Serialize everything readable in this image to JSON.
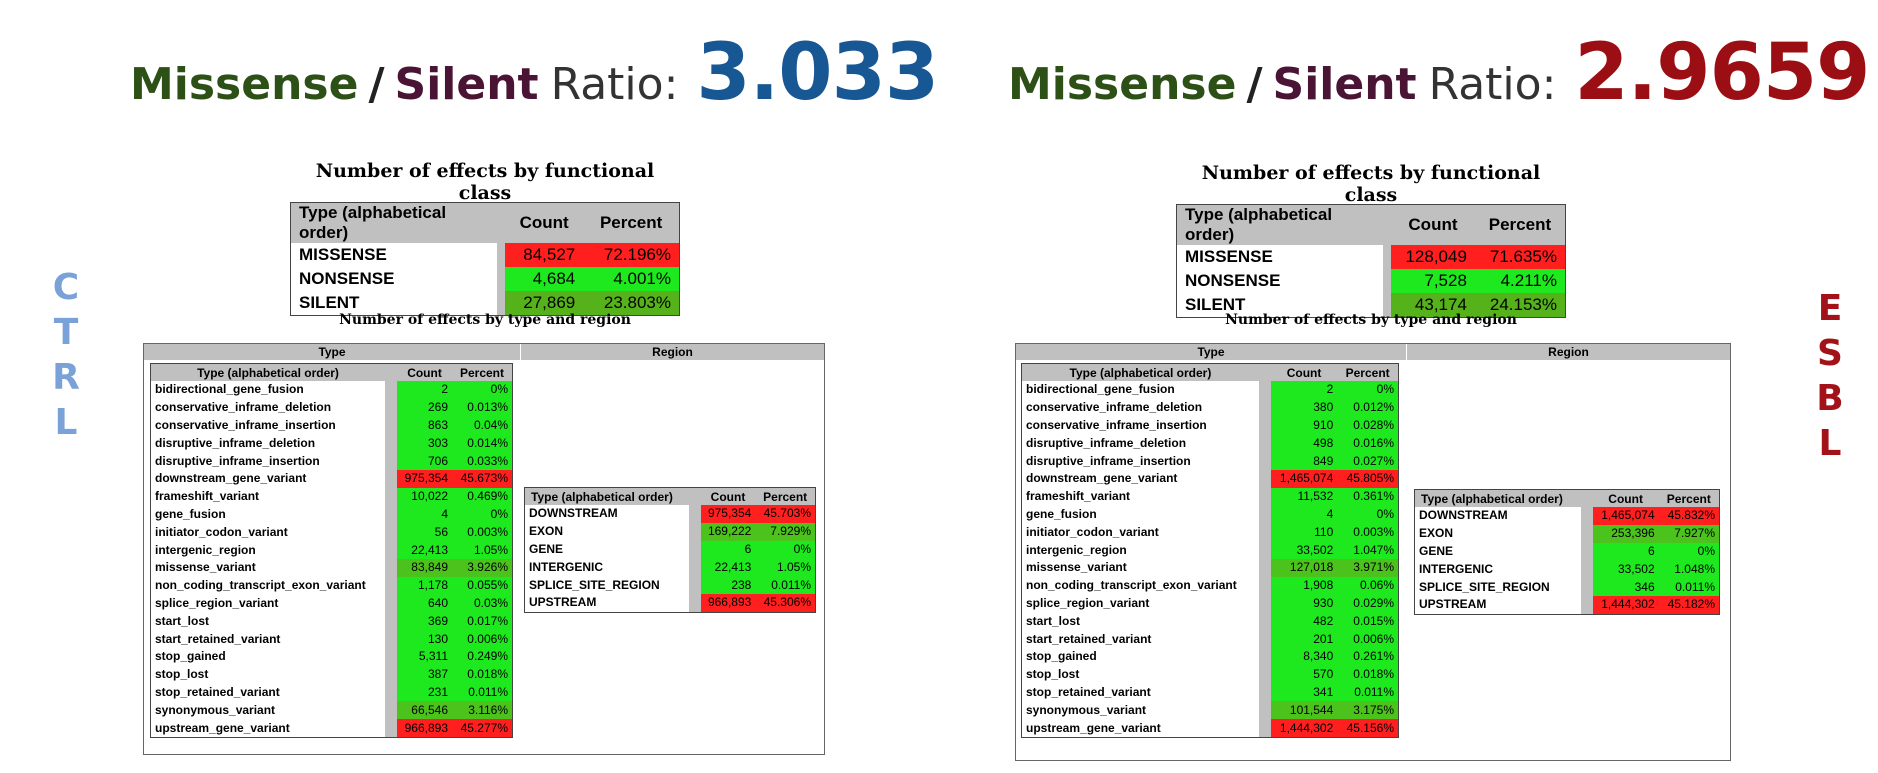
{
  "colors": {
    "red": "#ff1f1f",
    "green": "#1ee81e",
    "mid_green": "#4cc21c",
    "dark_green": "#56b21a",
    "left_ratio": "#175794",
    "right_ratio": "#9b0f14",
    "missense_word": "#2d5016",
    "silent_word": "#4a1535"
  },
  "left": {
    "ratio": {
      "missense": "Missense",
      "slash": "/",
      "silent": "Silent",
      "ratio_word": "Ratio",
      "colon": ":",
      "value": "3.033"
    },
    "side_label": [
      "C",
      "T",
      "R",
      "L"
    ],
    "functional_class": {
      "title": "Number of effects by functional class",
      "headers": {
        "type": "Type (alphabetical order)",
        "count": "Count",
        "percent": "Percent"
      },
      "rows": [
        {
          "type": "MISSENSE",
          "count": "84,527",
          "percent": "72.196%",
          "color": "#ff1f1f"
        },
        {
          "type": "NONSENSE",
          "count": "4,684",
          "percent": "4.001%",
          "color": "#1ee81e"
        },
        {
          "type": "SILENT",
          "count": "27,869",
          "percent": "23.803%",
          "color": "#56b21a"
        }
      ]
    },
    "type_region": {
      "title": "Number of effects by type and region",
      "type_header": "Type",
      "region_header": "Region",
      "type_table": {
        "headers": {
          "type": "Type (alphabetical order)",
          "count": "Count",
          "percent": "Percent"
        },
        "rows": [
          {
            "type": "bidirectional_gene_fusion",
            "count": "2",
            "percent": "0%",
            "color": "#1ee81e"
          },
          {
            "type": "conservative_inframe_deletion",
            "count": "269",
            "percent": "0.013%",
            "color": "#1ee81e"
          },
          {
            "type": "conservative_inframe_insertion",
            "count": "863",
            "percent": "0.04%",
            "color": "#1ee81e"
          },
          {
            "type": "disruptive_inframe_deletion",
            "count": "303",
            "percent": "0.014%",
            "color": "#1ee81e"
          },
          {
            "type": "disruptive_inframe_insertion",
            "count": "706",
            "percent": "0.033%",
            "color": "#1ee81e"
          },
          {
            "type": "downstream_gene_variant",
            "count": "975,354",
            "percent": "45.673%",
            "color": "#ff1f1f"
          },
          {
            "type": "frameshift_variant",
            "count": "10,022",
            "percent": "0.469%",
            "color": "#1ee81e"
          },
          {
            "type": "gene_fusion",
            "count": "4",
            "percent": "0%",
            "color": "#1ee81e"
          },
          {
            "type": "initiator_codon_variant",
            "count": "56",
            "percent": "0.003%",
            "color": "#1ee81e"
          },
          {
            "type": "intergenic_region",
            "count": "22,413",
            "percent": "1.05%",
            "color": "#1ee81e"
          },
          {
            "type": "missense_variant",
            "count": "83,849",
            "percent": "3.926%",
            "color": "#4cc21c"
          },
          {
            "type": "non_coding_transcript_exon_variant",
            "count": "1,178",
            "percent": "0.055%",
            "color": "#1ee81e"
          },
          {
            "type": "splice_region_variant",
            "count": "640",
            "percent": "0.03%",
            "color": "#1ee81e"
          },
          {
            "type": "start_lost",
            "count": "369",
            "percent": "0.017%",
            "color": "#1ee81e"
          },
          {
            "type": "start_retained_variant",
            "count": "130",
            "percent": "0.006%",
            "color": "#1ee81e"
          },
          {
            "type": "stop_gained",
            "count": "5,311",
            "percent": "0.249%",
            "color": "#1ee81e"
          },
          {
            "type": "stop_lost",
            "count": "387",
            "percent": "0.018%",
            "color": "#1ee81e"
          },
          {
            "type": "stop_retained_variant",
            "count": "231",
            "percent": "0.011%",
            "color": "#1ee81e"
          },
          {
            "type": "synonymous_variant",
            "count": "66,546",
            "percent": "3.116%",
            "color": "#4cc21c"
          },
          {
            "type": "upstream_gene_variant",
            "count": "966,893",
            "percent": "45.277%",
            "color": "#ff1f1f"
          }
        ]
      },
      "region_table": {
        "headers": {
          "type": "Type (alphabetical order)",
          "count": "Count",
          "percent": "Percent"
        },
        "rows": [
          {
            "type": "DOWNSTREAM",
            "count": "975,354",
            "percent": "45.703%",
            "color": "#ff1f1f"
          },
          {
            "type": "EXON",
            "count": "169,222",
            "percent": "7.929%",
            "color": "#4cc21c"
          },
          {
            "type": "GENE",
            "count": "6",
            "percent": "0%",
            "color": "#1ee81e"
          },
          {
            "type": "INTERGENIC",
            "count": "22,413",
            "percent": "1.05%",
            "color": "#1ee81e"
          },
          {
            "type": "SPLICE_SITE_REGION",
            "count": "238",
            "percent": "0.011%",
            "color": "#1ee81e"
          },
          {
            "type": "UPSTREAM",
            "count": "966,893",
            "percent": "45.306%",
            "color": "#ff1f1f"
          }
        ]
      }
    }
  },
  "right": {
    "ratio": {
      "missense": "Missense",
      "slash": "/",
      "silent": "Silent",
      "ratio_word": "Ratio",
      "colon": ":",
      "value": "2.9659"
    },
    "side_label": [
      "E",
      "S",
      "B",
      "L"
    ],
    "functional_class": {
      "title": "Number of effects by functional class",
      "headers": {
        "type": "Type (alphabetical order)",
        "count": "Count",
        "percent": "Percent"
      },
      "rows": [
        {
          "type": "MISSENSE",
          "count": "128,049",
          "percent": "71.635%",
          "color": "#ff1f1f"
        },
        {
          "type": "NONSENSE",
          "count": "7,528",
          "percent": "4.211%",
          "color": "#1ee81e"
        },
        {
          "type": "SILENT",
          "count": "43,174",
          "percent": "24.153%",
          "color": "#56b21a"
        }
      ]
    },
    "type_region": {
      "title": "Number of effects by type and region",
      "type_header": "Type",
      "region_header": "Region",
      "type_table": {
        "headers": {
          "type": "Type (alphabetical order)",
          "count": "Count",
          "percent": "Percent"
        },
        "rows": [
          {
            "type": "bidirectional_gene_fusion",
            "count": "2",
            "percent": "0%",
            "color": "#1ee81e"
          },
          {
            "type": "conservative_inframe_deletion",
            "count": "380",
            "percent": "0.012%",
            "color": "#1ee81e"
          },
          {
            "type": "conservative_inframe_insertion",
            "count": "910",
            "percent": "0.028%",
            "color": "#1ee81e"
          },
          {
            "type": "disruptive_inframe_deletion",
            "count": "498",
            "percent": "0.016%",
            "color": "#1ee81e"
          },
          {
            "type": "disruptive_inframe_insertion",
            "count": "849",
            "percent": "0.027%",
            "color": "#1ee81e"
          },
          {
            "type": "downstream_gene_variant",
            "count": "1,465,074",
            "percent": "45.805%",
            "color": "#ff1f1f"
          },
          {
            "type": "frameshift_variant",
            "count": "11,532",
            "percent": "0.361%",
            "color": "#1ee81e"
          },
          {
            "type": "gene_fusion",
            "count": "4",
            "percent": "0%",
            "color": "#1ee81e"
          },
          {
            "type": "initiator_codon_variant",
            "count": "110",
            "percent": "0.003%",
            "color": "#1ee81e"
          },
          {
            "type": "intergenic_region",
            "count": "33,502",
            "percent": "1.047%",
            "color": "#1ee81e"
          },
          {
            "type": "missense_variant",
            "count": "127,018",
            "percent": "3.971%",
            "color": "#4cc21c"
          },
          {
            "type": "non_coding_transcript_exon_variant",
            "count": "1,908",
            "percent": "0.06%",
            "color": "#1ee81e"
          },
          {
            "type": "splice_region_variant",
            "count": "930",
            "percent": "0.029%",
            "color": "#1ee81e"
          },
          {
            "type": "start_lost",
            "count": "482",
            "percent": "0.015%",
            "color": "#1ee81e"
          },
          {
            "type": "start_retained_variant",
            "count": "201",
            "percent": "0.006%",
            "color": "#1ee81e"
          },
          {
            "type": "stop_gained",
            "count": "8,340",
            "percent": "0.261%",
            "color": "#1ee81e"
          },
          {
            "type": "stop_lost",
            "count": "570",
            "percent": "0.018%",
            "color": "#1ee81e"
          },
          {
            "type": "stop_retained_variant",
            "count": "341",
            "percent": "0.011%",
            "color": "#1ee81e"
          },
          {
            "type": "synonymous_variant",
            "count": "101,544",
            "percent": "3.175%",
            "color": "#4cc21c"
          },
          {
            "type": "upstream_gene_variant",
            "count": "1,444,302",
            "percent": "45.156%",
            "color": "#ff1f1f"
          }
        ]
      },
      "region_table": {
        "headers": {
          "type": "Type (alphabetical order)",
          "count": "Count",
          "percent": "Percent"
        },
        "rows": [
          {
            "type": "DOWNSTREAM",
            "count": "1,465,074",
            "percent": "45.832%",
            "color": "#ff1f1f"
          },
          {
            "type": "EXON",
            "count": "253,396",
            "percent": "7.927%",
            "color": "#4cc21c"
          },
          {
            "type": "GENE",
            "count": "6",
            "percent": "0%",
            "color": "#1ee81e"
          },
          {
            "type": "INTERGENIC",
            "count": "33,502",
            "percent": "1.048%",
            "color": "#1ee81e"
          },
          {
            "type": "SPLICE_SITE_REGION",
            "count": "346",
            "percent": "0.011%",
            "color": "#1ee81e"
          },
          {
            "type": "UPSTREAM",
            "count": "1,444,302",
            "percent": "45.182%",
            "color": "#ff1f1f"
          }
        ]
      }
    }
  }
}
